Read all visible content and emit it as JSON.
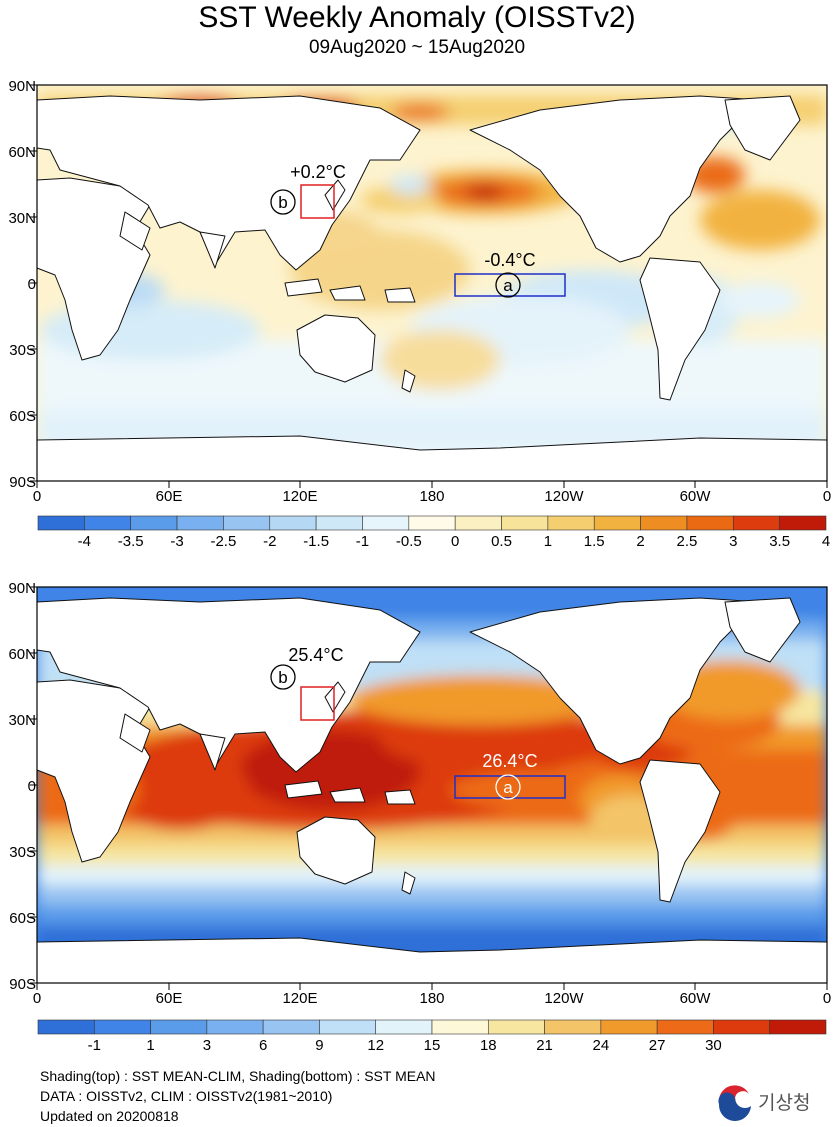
{
  "header": {
    "title": "SST Weekly Anomaly (OISSTv2)",
    "subtitle": "09Aug2020 ~ 15Aug2020"
  },
  "axes": {
    "y_labels": [
      "90N",
      "60N",
      "30N",
      "0",
      "30S",
      "60S",
      "90S"
    ],
    "x_labels": [
      "0",
      "60E",
      "120E",
      "180",
      "120W",
      "60W",
      "0"
    ]
  },
  "top_map": {
    "region_a": {
      "marker": "a",
      "value": "-0.4",
      "unit": "°C",
      "text": "-0.4°C"
    },
    "region_b": {
      "marker": "b",
      "value": "+0.2",
      "unit": "°C",
      "text": "+0.2°C"
    },
    "colorbar": {
      "labels": [
        "-4",
        "-3.5",
        "-3",
        "-2.5",
        "-2",
        "-1.5",
        "-1",
        "-0.5",
        "0",
        "0.5",
        "1",
        "1.5",
        "2",
        "2.5",
        "3",
        "3.5",
        "4"
      ],
      "colors": [
        "#2f6fd8",
        "#3f84e6",
        "#5a9bea",
        "#79b0ef",
        "#98c4f2",
        "#b5d8f5",
        "#cfe8f8",
        "#e6f4fb",
        "#fffbe8",
        "#fbf0c2",
        "#f8e39a",
        "#f5cf6f",
        "#f2b240",
        "#ee8e22",
        "#ea6a14",
        "#dd3d0e",
        "#c01a08"
      ]
    }
  },
  "bottom_map": {
    "region_a": {
      "marker": "a",
      "value": "26.4",
      "unit": "°C",
      "text": "26.4°C"
    },
    "region_b": {
      "marker": "b",
      "value": "25.4",
      "unit": "°C",
      "text": "25.4°C"
    },
    "colorbar": {
      "labels": [
        "-1",
        "1",
        "3",
        "6",
        "9",
        "12",
        "15",
        "18",
        "21",
        "24",
        "27",
        "30"
      ],
      "colors": [
        "#2f6fd8",
        "#3f84e6",
        "#5a9bea",
        "#79b0ef",
        "#98c4f2",
        "#bfe0f6",
        "#e3f3fa",
        "#fdf8d8",
        "#f6e6a0",
        "#f3c468",
        "#f19a2c",
        "#ec6a18",
        "#dd3a0e",
        "#c01a08"
      ]
    }
  },
  "footer": {
    "line1": "Shading(top) : SST MEAN-CLIM, Shading(bottom) : SST MEAN",
    "line2": "DATA : OISSTv2, CLIM : OISSTv2(1981~2010)",
    "line3": "Updated on 20200818"
  },
  "logo": {
    "text": "기상청",
    "colors": {
      "red": "#d9232e",
      "blue": "#1d4b9a",
      "gray": "#555555"
    }
  }
}
